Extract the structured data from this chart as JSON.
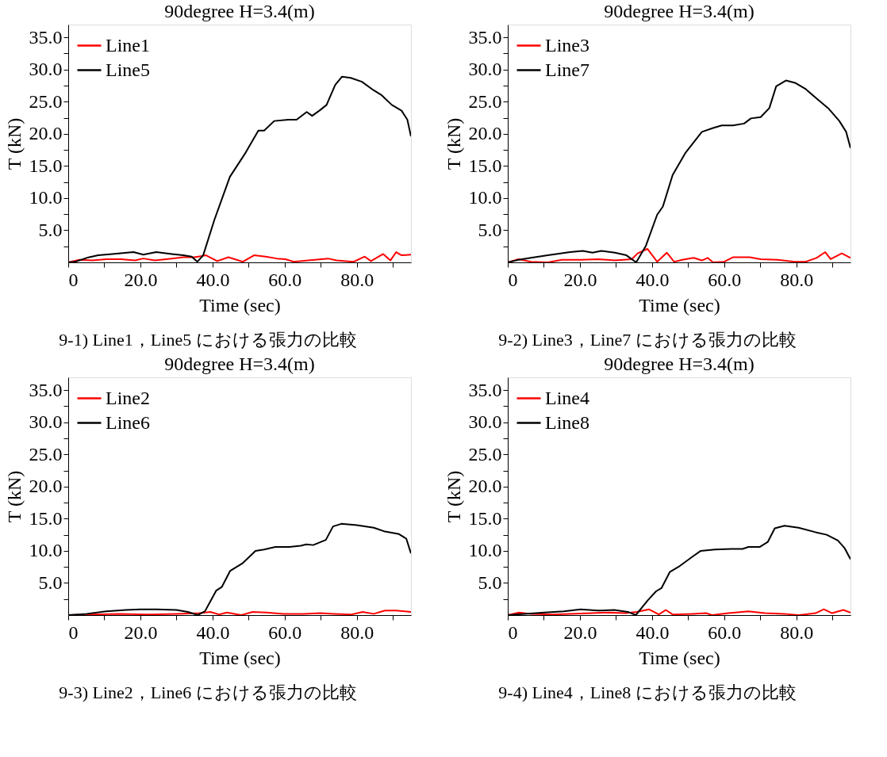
{
  "chart_data": [
    {
      "type": "line",
      "title": "90degree H=3.4(m)",
      "xlabel": "Time (sec)",
      "ylabel": "T (kN)",
      "annotations": [
        "9-1) Line1，Line5 における張力の比較"
      ],
      "xlim": [
        0,
        95
      ],
      "ylim": [
        0,
        37
      ],
      "xticks": [
        0,
        {
          "value": 10,
          "label": null
        },
        {
          "value": 20,
          "label": "20.0"
        },
        {
          "value": 30,
          "label": null
        },
        {
          "value": 40,
          "label": "40.0"
        },
        {
          "value": 50,
          "label": null
        },
        {
          "value": 60,
          "label": "60.0"
        },
        {
          "value": 70,
          "label": null
        },
        {
          "value": 80,
          "label": "80.0"
        },
        {
          "value": 90,
          "label": null
        }
      ],
      "yticks": [
        {
          "value": 2.5,
          "label": null
        },
        {
          "value": 5,
          "label": "5.0"
        },
        {
          "value": 7.5,
          "label": null
        },
        {
          "value": 10,
          "label": "10.0"
        },
        {
          "value": 12.5,
          "label": null
        },
        {
          "value": 15,
          "label": "15.0"
        },
        {
          "value": 17.5,
          "label": null
        },
        {
          "value": 20,
          "label": "20.0"
        },
        {
          "value": 22.5,
          "label": null
        },
        {
          "value": 25,
          "label": "25.0"
        },
        {
          "value": 27.5,
          "label": null
        },
        {
          "value": 30,
          "label": "30.0"
        },
        {
          "value": 32.5,
          "label": null
        },
        {
          "value": 35,
          "label": "35.0"
        }
      ],
      "legend": "top left",
      "grid": false,
      "marker": "none",
      "line_style": "solid",
      "series": [
        {
          "name": "Line1",
          "color": "#ff0000",
          "x": [
            0,
            3.1,
            6.7,
            10.6,
            14.6,
            18.5,
            20.8,
            24,
            28.7,
            31.9,
            35,
            38.2,
            41.3,
            44.4,
            48.4,
            51.5,
            54.7,
            57.8,
            60.2,
            62.5,
            66.5,
            72,
            74.4,
            79.1,
            82.2,
            83.9,
            87.3,
            89.3,
            90.9,
            92.4,
            95
          ],
          "values": [
            0,
            0.4,
            0.3,
            0.5,
            0.5,
            0.3,
            0.6,
            0.3,
            0.6,
            0.8,
            0.8,
            1.1,
            0.2,
            0.8,
            0.1,
            1.1,
            0.9,
            0.6,
            0.5,
            0.1,
            0.3,
            0.6,
            0.3,
            0.1,
            0.9,
            0.2,
            1.3,
            0.3,
            1.6,
            1.1,
            1.2
          ]
        },
        {
          "name": "Line5",
          "color": "#000000",
          "x": [
            0,
            2,
            5.1,
            8.3,
            12.2,
            18.1,
            20.8,
            24.4,
            28.7,
            31.9,
            34.2,
            35.8,
            37.4,
            40.5,
            44.8,
            49.2,
            52.7,
            54.3,
            57.1,
            61,
            63.3,
            66.1,
            67.6,
            69.6,
            71.6,
            74,
            75.9,
            78.3,
            81.4,
            84.6,
            86.9,
            89.7,
            92.4,
            94,
            95
          ],
          "values": [
            0,
            0.1,
            0.7,
            1.1,
            1.3,
            1.6,
            1.2,
            1.6,
            1.3,
            1.1,
            0.9,
            0.1,
            1.1,
            6.6,
            13.3,
            17.1,
            20.5,
            20.5,
            22,
            22.2,
            22.2,
            23.4,
            22.8,
            23.6,
            24.5,
            27.6,
            28.9,
            28.7,
            28.1,
            26.8,
            26,
            24.5,
            23.6,
            22.2,
            19.6
          ]
        }
      ]
    },
    {
      "type": "line",
      "title": "90degree H=3.4(m)",
      "xlabel": "Time (sec)",
      "ylabel": "T (kN)",
      "annotations": [
        "9-2) Line3，Line7 における張力の比較"
      ],
      "xlim": [
        0,
        95
      ],
      "ylim": [
        0,
        37
      ],
      "xticks": [
        0,
        {
          "value": 10,
          "label": null
        },
        {
          "value": 20,
          "label": "20.0"
        },
        {
          "value": 30,
          "label": null
        },
        {
          "value": 40,
          "label": "40.0"
        },
        {
          "value": 50,
          "label": null
        },
        {
          "value": 60,
          "label": "60.0"
        },
        {
          "value": 70,
          "label": null
        },
        {
          "value": 80,
          "label": "80.0"
        },
        {
          "value": 90,
          "label": null
        }
      ],
      "yticks": [
        {
          "value": 2.5,
          "label": null
        },
        {
          "value": 5,
          "label": "5.0"
        },
        {
          "value": 7.5,
          "label": null
        },
        {
          "value": 10,
          "label": "10.0"
        },
        {
          "value": 12.5,
          "label": null
        },
        {
          "value": 15,
          "label": "15.0"
        },
        {
          "value": 17.5,
          "label": null
        },
        {
          "value": 20,
          "label": "20.0"
        },
        {
          "value": 22.5,
          "label": null
        },
        {
          "value": 25,
          "label": "25.0"
        },
        {
          "value": 27.5,
          "label": null
        },
        {
          "value": 30,
          "label": "30.0"
        },
        {
          "value": 32.5,
          "label": null
        },
        {
          "value": 35,
          "label": "35.0"
        }
      ],
      "legend": "top left",
      "grid": false,
      "marker": "none",
      "line_style": "solid",
      "series": [
        {
          "name": "Line3",
          "color": "#ff0000",
          "x": [
            0,
            3,
            6.4,
            11.1,
            15,
            20.4,
            25.1,
            29.7,
            34.4,
            36,
            38.7,
            41.4,
            44.1,
            46.1,
            48.4,
            51.5,
            53.8,
            55.4,
            56.9,
            60,
            62.4,
            67,
            70.1,
            74.8,
            79.5,
            82.6,
            85.6,
            88,
            89.5,
            92.6,
            95
          ],
          "values": [
            0,
            0.5,
            0.1,
            0,
            0.4,
            0.4,
            0.5,
            0.3,
            0.5,
            1.4,
            2.1,
            0.1,
            1.5,
            0.1,
            0.4,
            0.7,
            0.3,
            0.7,
            0,
            0.1,
            0.8,
            0.8,
            0.5,
            0.4,
            0.1,
            0.1,
            0.7,
            1.6,
            0.5,
            1.4,
            0.7
          ]
        },
        {
          "name": "Line7",
          "color": "#000000",
          "x": [
            0,
            3,
            6.4,
            11.1,
            17.3,
            20.8,
            23.5,
            25.9,
            29.7,
            32.9,
            35.6,
            38.3,
            41.4,
            43,
            45.7,
            49.2,
            53.8,
            56.9,
            59.3,
            62.4,
            65.5,
            67.4,
            70.1,
            72.5,
            74.4,
            77.1,
            79.8,
            82.5,
            85.6,
            88.8,
            91.9,
            93.8,
            95
          ],
          "values": [
            0,
            0.4,
            0.7,
            1.1,
            1.6,
            1.8,
            1.5,
            1.8,
            1.5,
            1.1,
            0,
            2.6,
            7.4,
            8.7,
            13.6,
            17,
            20.3,
            20.9,
            21.3,
            21.3,
            21.6,
            22.4,
            22.6,
            24,
            27.4,
            28.3,
            27.9,
            27,
            25.5,
            24,
            22,
            20.3,
            17.8
          ]
        }
      ]
    },
    {
      "type": "line",
      "title": "90degree H=3.4(m)",
      "xlabel": "Time (sec)",
      "ylabel": "T (kN)",
      "annotations": [
        "9-3) Line2，Line6 における張力の比較"
      ],
      "xlim": [
        0,
        95
      ],
      "ylim": [
        0,
        37
      ],
      "xticks": [
        0,
        {
          "value": 10,
          "label": null
        },
        {
          "value": 20,
          "label": "20.0"
        },
        {
          "value": 30,
          "label": null
        },
        {
          "value": 40,
          "label": "40.0"
        },
        {
          "value": 50,
          "label": null
        },
        {
          "value": 60,
          "label": "60.0"
        },
        {
          "value": 70,
          "label": null
        },
        {
          "value": 80,
          "label": "80.0"
        },
        {
          "value": 90,
          "label": null
        }
      ],
      "yticks": [
        {
          "value": 2.5,
          "label": null
        },
        {
          "value": 5,
          "label": "5.0"
        },
        {
          "value": 7.5,
          "label": null
        },
        {
          "value": 10,
          "label": "10.0"
        },
        {
          "value": 12.5,
          "label": null
        },
        {
          "value": 15,
          "label": "15.0"
        },
        {
          "value": 17.5,
          "label": null
        },
        {
          "value": 20,
          "label": "20.0"
        },
        {
          "value": 22.5,
          "label": null
        },
        {
          "value": 25,
          "label": "25.0"
        },
        {
          "value": 27.5,
          "label": null
        },
        {
          "value": 30,
          "label": "30.0"
        },
        {
          "value": 32.5,
          "label": null
        },
        {
          "value": 35,
          "label": "35.0"
        }
      ],
      "legend": "top left",
      "grid": false,
      "marker": "none",
      "line_style": "solid",
      "series": [
        {
          "name": "Line2",
          "color": "#ff0000",
          "x": [
            0,
            6.6,
            14.4,
            22.2,
            30,
            36.3,
            39.4,
            41.8,
            44,
            48,
            51.1,
            55,
            59.7,
            65.2,
            69.9,
            73.8,
            78.5,
            81.6,
            84.7,
            87.8,
            90.9,
            95
          ],
          "values": [
            0,
            0.1,
            0.2,
            0.1,
            0.2,
            0.3,
            0.5,
            0.1,
            0.4,
            0,
            0.5,
            0.4,
            0.2,
            0.2,
            0.3,
            0.2,
            0.1,
            0.5,
            0.2,
            0.7,
            0.7,
            0.5
          ]
        },
        {
          "name": "Line6",
          "color": "#000000",
          "x": [
            0,
            5.1,
            10.5,
            16,
            19.9,
            24.6,
            30,
            33.2,
            35.9,
            37.9,
            41,
            42.6,
            44.9,
            48.4,
            51.9,
            54.3,
            57.4,
            61.3,
            64.4,
            66,
            67.9,
            71.4,
            73.4,
            75.7,
            80,
            84.7,
            87.8,
            91.7,
            93.7,
            95
          ],
          "values": [
            0,
            0.2,
            0.6,
            0.8,
            0.9,
            0.9,
            0.8,
            0.5,
            0,
            0.6,
            3.8,
            4.4,
            6.9,
            8.1,
            10,
            10.2,
            10.6,
            10.6,
            10.8,
            11,
            10.9,
            11.7,
            13.8,
            14.2,
            14,
            13.6,
            13,
            12.6,
            11.9,
            9.6
          ]
        }
      ]
    },
    {
      "type": "line",
      "title": "90degree H=3.4(m)",
      "xlabel": "Time (sec)",
      "ylabel": "T (kN)",
      "annotations": [
        "9-4) Line4，Line8 における張力の比較"
      ],
      "xlim": [
        0,
        95
      ],
      "ylim": [
        0,
        37
      ],
      "xticks": [
        0,
        {
          "value": 10,
          "label": null
        },
        {
          "value": 20,
          "label": "20.0"
        },
        {
          "value": 30,
          "label": null
        },
        {
          "value": 40,
          "label": "40.0"
        },
        {
          "value": 50,
          "label": null
        },
        {
          "value": 60,
          "label": "60.0"
        },
        {
          "value": 70,
          "label": null
        },
        {
          "value": 80,
          "label": "80.0"
        },
        {
          "value": 90,
          "label": null
        }
      ],
      "yticks": [
        {
          "value": 2.5,
          "label": null
        },
        {
          "value": 5,
          "label": "5.0"
        },
        {
          "value": 7.5,
          "label": null
        },
        {
          "value": 10,
          "label": "10.0"
        },
        {
          "value": 12.5,
          "label": null
        },
        {
          "value": 15,
          "label": "15.0"
        },
        {
          "value": 17.5,
          "label": null
        },
        {
          "value": 20,
          "label": "20.0"
        },
        {
          "value": 22.5,
          "label": null
        },
        {
          "value": 25,
          "label": "25.0"
        },
        {
          "value": 27.5,
          "label": null
        },
        {
          "value": 30,
          "label": "30.0"
        },
        {
          "value": 32.5,
          "label": null
        },
        {
          "value": 35,
          "label": "35.0"
        }
      ],
      "legend": "top left",
      "grid": false,
      "marker": "none",
      "line_style": "solid",
      "series": [
        {
          "name": "Line4",
          "color": "#ff0000",
          "x": [
            0,
            3.1,
            6.2,
            12.4,
            17.1,
            23.3,
            27.9,
            32.6,
            35.7,
            39.1,
            41.9,
            43.8,
            45.7,
            51.2,
            55,
            56.6,
            61.2,
            66.7,
            71.3,
            76.7,
            80.6,
            85.3,
            87.6,
            89.9,
            93,
            95
          ],
          "values": [
            0,
            0.4,
            0.2,
            0.1,
            0.2,
            0.3,
            0.4,
            0.3,
            0.5,
            0.9,
            0.1,
            0.8,
            0.1,
            0.2,
            0.3,
            0,
            0.3,
            0.6,
            0.3,
            0.2,
            0,
            0.3,
            0.9,
            0.3,
            0.8,
            0.4
          ]
        },
        {
          "name": "Line8",
          "color": "#000000",
          "x": [
            0,
            4.7,
            10.1,
            15.5,
            20.2,
            25.1,
            29.5,
            33.3,
            35.5,
            38.8,
            41.1,
            42.6,
            44.9,
            47.3,
            51.2,
            53.5,
            57.4,
            62,
            65.1,
            66.7,
            69.8,
            72.1,
            74,
            76.7,
            80.6,
            85.3,
            88.4,
            91.5,
            93.4,
            95
          ],
          "values": [
            0,
            0.2,
            0.4,
            0.6,
            0.9,
            0.7,
            0.8,
            0.5,
            0,
            2.3,
            3.7,
            4.2,
            6.7,
            7.5,
            9.1,
            10,
            10.2,
            10.3,
            10.3,
            10.6,
            10.6,
            11.4,
            13.5,
            13.9,
            13.6,
            12.9,
            12.5,
            11.6,
            10.4,
            8.7
          ]
        }
      ]
    }
  ]
}
